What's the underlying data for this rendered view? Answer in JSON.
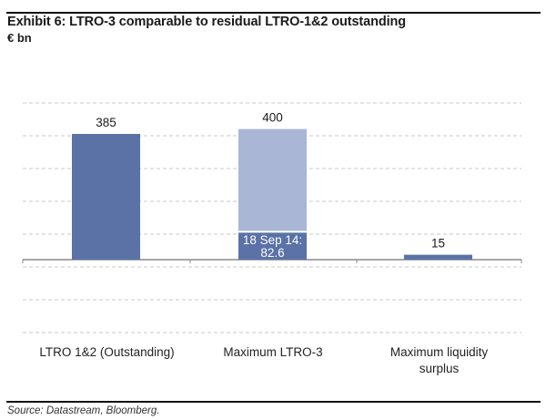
{
  "title": "Exhibit 6: LTRO-3 comparable to residual LTRO-1&2 outstanding",
  "unit": "€ bn",
  "source": "Source: Datastream, Bloomberg.",
  "colors": {
    "dark": "#5a72a6",
    "light": "#aab6d6",
    "grid": "#c8c8c8",
    "axis": "#8a8a8a"
  },
  "chart_data": {
    "type": "bar",
    "title": "Exhibit 6: LTRO-3 comparable to residual LTRO-1&2 outstanding",
    "ylabel": "€ bn",
    "xlabel": "",
    "categories": [
      "LTRO 1&2 (Outstanding)",
      "Maximum LTRO-3",
      "Maximum liquidity surplus"
    ],
    "bars": [
      {
        "category": "LTRO 1&2 (Outstanding)",
        "value": 385,
        "label": "385",
        "segments": [
          {
            "value": 385,
            "color": "dark"
          }
        ]
      },
      {
        "category": "Maximum LTRO-3",
        "value": 400,
        "label": "400",
        "segments": [
          {
            "value": 82.6,
            "color": "dark",
            "label_line1": "18 Sep 14:",
            "label_line2": "82.6"
          },
          {
            "value": 317.4,
            "color": "light"
          }
        ]
      },
      {
        "category": "Maximum liquidity surplus",
        "value": 15,
        "label": "15",
        "segments": [
          {
            "value": 15,
            "color": "dark"
          }
        ]
      }
    ],
    "grid": true,
    "legend": "none"
  }
}
